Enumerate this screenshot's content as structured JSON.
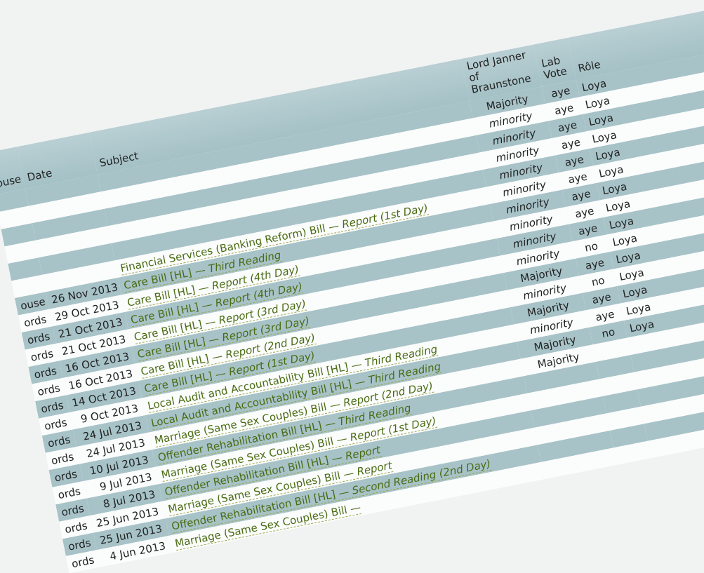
{
  "headers": {
    "house": "ouse",
    "date": "Date",
    "subject": "Subject",
    "janner": "Lord Janner\nof\nBraunstone",
    "lab_vote": "Lab\nVote",
    "role": "Rôle"
  },
  "rows": [
    {
      "house": "",
      "date": "",
      "bill": "",
      "stage": "",
      "janner": "Majority",
      "vote": "aye",
      "role": "Loya"
    },
    {
      "house": "",
      "date": "",
      "bill": "",
      "stage": "",
      "janner": "minority",
      "vote": "aye",
      "role": "Loya"
    },
    {
      "house": "",
      "date": "",
      "bill": "",
      "stage": "",
      "janner": "minority",
      "vote": "aye",
      "role": "Loya"
    },
    {
      "house": "",
      "date": "",
      "bill": "",
      "stage": "",
      "janner": "minority",
      "vote": "aye",
      "role": "Loya"
    },
    {
      "house": "",
      "date": "",
      "bill": "",
      "stage": "",
      "janner": "minority",
      "vote": "aye",
      "role": "Loya"
    },
    {
      "house": "",
      "date": "",
      "bill": "Financial Services (Banking Reform) Bill — ",
      "stage": "Report (1st Day)",
      "janner": "minority",
      "vote": "aye",
      "role": "Loya"
    },
    {
      "house": "ouse",
      "date": "26 Nov 2013",
      "bill": "Care Bill [HL] — ",
      "stage": "Third Reading",
      "janner": "minority",
      "vote": "aye",
      "role": "Loya"
    },
    {
      "house": "ords",
      "date": "29 Oct 2013",
      "bill": "Care Bill [HL] — ",
      "stage": "Report (4th Day)",
      "janner": "minority",
      "vote": "aye",
      "role": "Loya"
    },
    {
      "house": "ords",
      "date": "21 Oct 2013",
      "bill": "Care Bill [HL] — ",
      "stage": "Report (4th Day)",
      "janner": "minority",
      "vote": "aye",
      "role": "Loya"
    },
    {
      "house": "ords",
      "date": "21 Oct 2013",
      "bill": "Care Bill [HL] — ",
      "stage": "Report (3rd Day)",
      "janner": "minority",
      "vote": "no",
      "role": "Loya"
    },
    {
      "house": "ords",
      "date": "16 Oct 2013",
      "bill": "Care Bill [HL] — ",
      "stage": "Report (3rd Day)",
      "janner": "Majority",
      "vote": "aye",
      "role": "Loya"
    },
    {
      "house": "ords",
      "date": "16 Oct 2013",
      "bill": "Care Bill [HL] — ",
      "stage": "Report (2nd Day)",
      "janner": "minority",
      "vote": "no",
      "role": "Loya"
    },
    {
      "house": "ords",
      "date": "14 Oct 2013",
      "bill": "Care Bill [HL] — ",
      "stage": "Report (1st Day)",
      "janner": "Majority",
      "vote": "aye",
      "role": "Loya"
    },
    {
      "house": "ords",
      "date": "9 Oct 2013",
      "bill": "Local Audit and Accountability Bill [HL] — ",
      "stage": "Third Reading",
      "janner": "minority",
      "vote": "aye",
      "role": "Loya"
    },
    {
      "house": "ords",
      "date": "24 Jul 2013",
      "bill": "Local Audit and Accountability Bill [HL] — ",
      "stage": "Third Reading",
      "janner": "Majority",
      "vote": "no",
      "role": "Loya"
    },
    {
      "house": "ords",
      "date": "24 Jul 2013",
      "bill": "Marriage (Same Sex Couples) Bill — ",
      "stage": "Report (2nd Day)",
      "janner": "Majority",
      "vote": "",
      "role": ""
    },
    {
      "house": "ords",
      "date": "10 Jul 2013",
      "bill": "Offender Rehabilitation Bill [HL] — ",
      "stage": "Third Reading",
      "janner": "",
      "vote": "",
      "role": ""
    },
    {
      "house": "ords",
      "date": "9 Jul 2013",
      "bill": "Marriage (Same Sex Couples) Bill — ",
      "stage": "Report (1st Day)",
      "janner": "",
      "vote": "",
      "role": ""
    },
    {
      "house": "ords",
      "date": "8 Jul 2013",
      "bill": "Offender Rehabilitation Bill [HL] — ",
      "stage": "Report",
      "janner": "",
      "vote": "",
      "role": ""
    },
    {
      "house": "ords",
      "date": "25 Jun 2013",
      "bill": "Marriage (Same Sex Couples) Bill — ",
      "stage": "Report",
      "janner": "",
      "vote": "",
      "role": ""
    },
    {
      "house": "ords",
      "date": "25 Jun 2013",
      "bill": "Offender Rehabilitation Bill [HL] — ",
      "stage": "Second Reading (2nd Day)",
      "janner": "",
      "vote": "",
      "role": ""
    },
    {
      "house": "ords",
      "date": "4 Jun 2013",
      "bill": "Marriage (Same Sex Couples) Bill — ",
      "stage": "",
      "janner": "",
      "vote": "",
      "role": ""
    }
  ]
}
